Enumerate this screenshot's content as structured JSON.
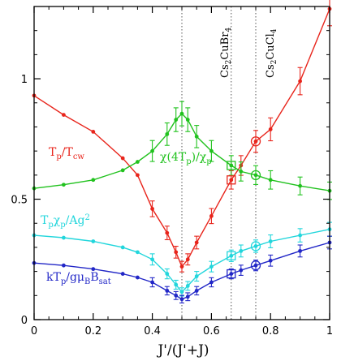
{
  "chart_data": {
    "type": "line",
    "xlabel": "J'/(J'+J)",
    "ylabel": "",
    "xlim": [
      0,
      1
    ],
    "ylim": [
      0,
      1.3
    ],
    "x_ticks": [
      "0",
      "0.2",
      "0.4",
      "0.6",
      "0.8",
      "1"
    ],
    "x_tick_values": [
      0,
      0.2,
      0.4,
      0.6,
      0.8,
      1.0
    ],
    "y_ticks": [
      "0",
      "0.5",
      "1"
    ],
    "y_tick_values": [
      0,
      0.5,
      1.0
    ],
    "reference_lines": [
      {
        "x": 0.5,
        "label": ""
      },
      {
        "x": 0.667,
        "label": "Cs2CuBr4"
      },
      {
        "x": 0.75,
        "label": "Cs2CuCl4"
      }
    ],
    "series": [
      {
        "name": "Tp/Tcw",
        "color": "#e8251c",
        "x": [
          0,
          0.1,
          0.2,
          0.3,
          0.35,
          0.4,
          0.45,
          0.48,
          0.5,
          0.52,
          0.55,
          0.6,
          0.667,
          0.7,
          0.75,
          0.8,
          0.9,
          1.0
        ],
        "y": [
          0.93,
          0.85,
          0.78,
          0.67,
          0.6,
          0.46,
          0.36,
          0.28,
          0.22,
          0.25,
          0.32,
          0.43,
          0.58,
          0.64,
          0.74,
          0.79,
          0.99,
          1.29
        ]
      },
      {
        "name": "χ(4Tp)/χp",
        "color": "#21c21e",
        "x": [
          0,
          0.1,
          0.2,
          0.3,
          0.35,
          0.4,
          0.45,
          0.48,
          0.5,
          0.52,
          0.55,
          0.6,
          0.667,
          0.7,
          0.75,
          0.8,
          0.9,
          1.0
        ],
        "y": [
          0.545,
          0.56,
          0.58,
          0.62,
          0.655,
          0.7,
          0.77,
          0.83,
          0.855,
          0.83,
          0.76,
          0.7,
          0.64,
          0.615,
          0.6,
          0.58,
          0.555,
          0.535
        ]
      },
      {
        "name": "Tpχp/Ag²",
        "color": "#22d6dc",
        "x": [
          0,
          0.1,
          0.2,
          0.3,
          0.35,
          0.4,
          0.45,
          0.48,
          0.5,
          0.52,
          0.55,
          0.6,
          0.667,
          0.7,
          0.75,
          0.8,
          0.9,
          1.0
        ],
        "y": [
          0.35,
          0.34,
          0.325,
          0.3,
          0.28,
          0.25,
          0.19,
          0.145,
          0.115,
          0.14,
          0.18,
          0.22,
          0.265,
          0.285,
          0.305,
          0.325,
          0.35,
          0.375
        ]
      },
      {
        "name": "kTp/gμBBsat",
        "color": "#2227c7",
        "x": [
          0,
          0.1,
          0.2,
          0.3,
          0.35,
          0.4,
          0.45,
          0.48,
          0.5,
          0.52,
          0.55,
          0.6,
          0.667,
          0.7,
          0.75,
          0.8,
          0.9,
          1.0
        ],
        "y": [
          0.235,
          0.225,
          0.21,
          0.19,
          0.175,
          0.155,
          0.12,
          0.1,
          0.085,
          0.095,
          0.12,
          0.155,
          0.19,
          0.205,
          0.225,
          0.245,
          0.285,
          0.32
        ]
      }
    ],
    "markers": [
      {
        "shape": "square",
        "x": 0.667,
        "y": 0.58,
        "color": "#e8251c"
      },
      {
        "shape": "square",
        "x": 0.667,
        "y": 0.64,
        "color": "#21c21e"
      },
      {
        "shape": "square",
        "x": 0.667,
        "y": 0.265,
        "color": "#22d6dc"
      },
      {
        "shape": "square",
        "x": 0.667,
        "y": 0.19,
        "color": "#2227c7"
      },
      {
        "shape": "circle",
        "x": 0.75,
        "y": 0.74,
        "color": "#e8251c"
      },
      {
        "shape": "circle",
        "x": 0.75,
        "y": 0.6,
        "color": "#21c21e"
      },
      {
        "shape": "circle",
        "x": 0.75,
        "y": 0.305,
        "color": "#22d6dc"
      },
      {
        "shape": "circle",
        "x": 0.75,
        "y": 0.225,
        "color": "#2227c7"
      }
    ],
    "grid": false,
    "legend": "inline"
  }
}
